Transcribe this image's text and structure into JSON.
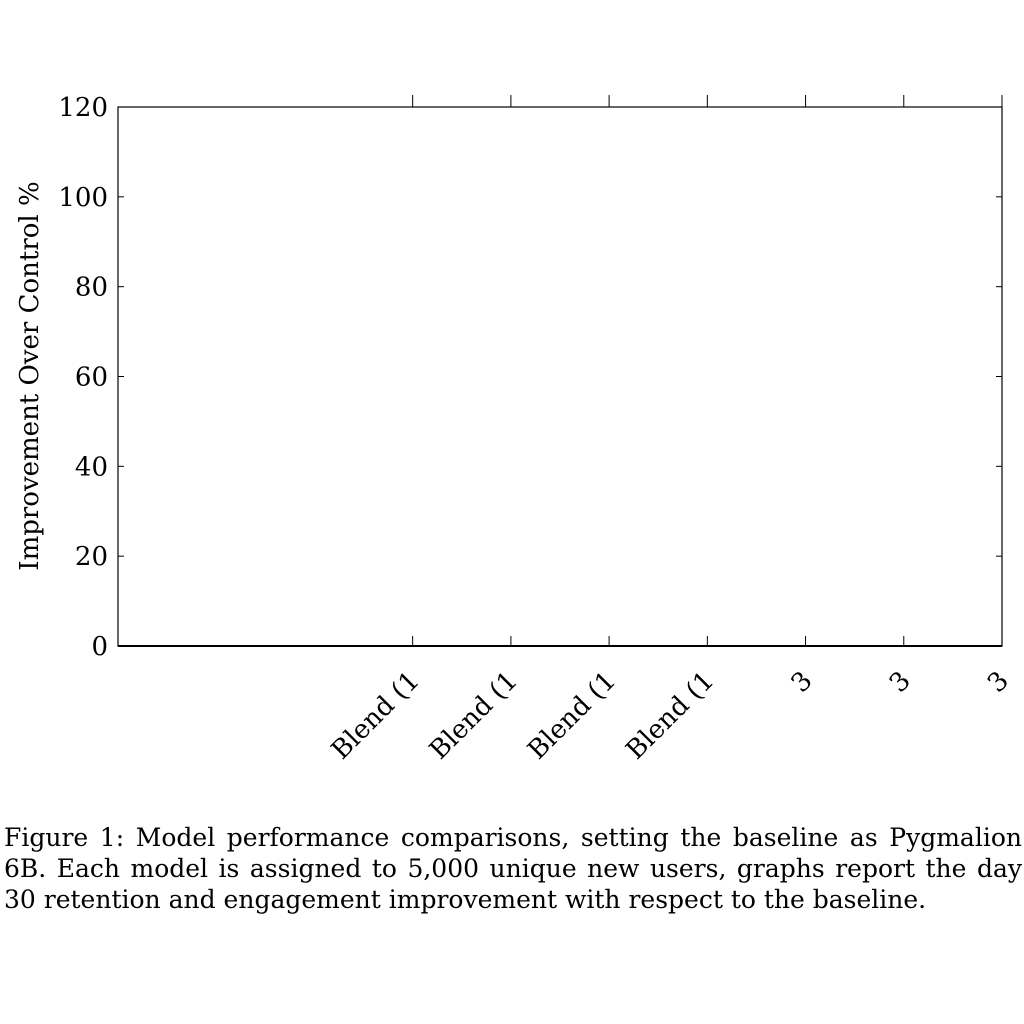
{
  "chart_data": {
    "type": "bar",
    "ylabel": "Improvement Over Control %",
    "ylim": [
      0,
      120
    ],
    "yticks": [
      0,
      20,
      40,
      60,
      80,
      100,
      120
    ],
    "categories": [
      "",
      "",
      "",
      "Blend (1",
      "Blend (1",
      "Blend (1",
      "Blend (1",
      "3",
      "3",
      "3"
    ],
    "values": [
      0,
      0,
      0,
      0,
      0,
      0,
      0,
      0,
      0,
      0
    ],
    "grid": false
  },
  "caption": "Figure 1: Model performance comparisons, setting the baseline as Pygmalion 6B. Each model is assigned to 5,000 unique new users, graphs report the day 30 retention and engagement improvement with respect to the baseline."
}
